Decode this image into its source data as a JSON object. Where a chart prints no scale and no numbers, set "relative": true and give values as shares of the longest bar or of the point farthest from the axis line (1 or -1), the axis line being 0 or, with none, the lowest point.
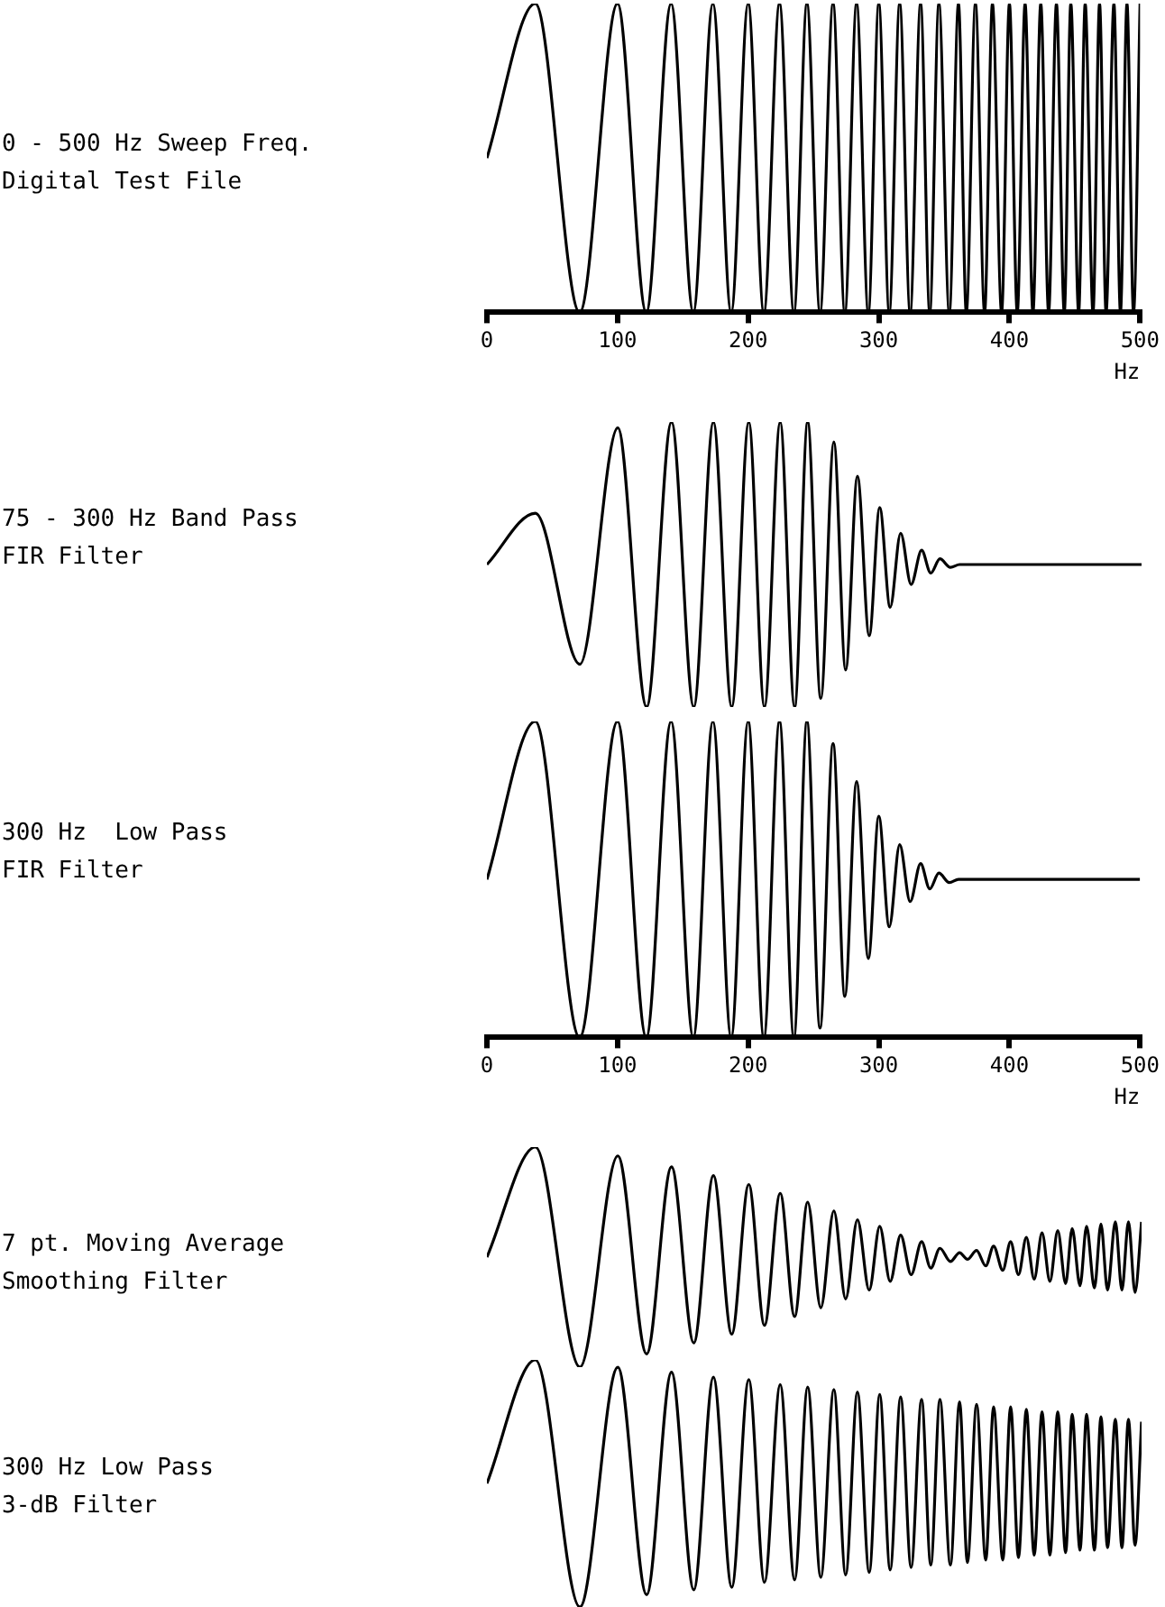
{
  "chart_data": [
    {
      "type": "line",
      "annotations": [
        "0 - 500 Hz Sweep Freq.\nDigital Test File"
      ],
      "xlabel": "Hz",
      "relative": true,
      "color": "#000000",
      "legend": false,
      "grid": false,
      "marker": "none",
      "xlim": [
        0,
        500
      ],
      "xticks": [
        0,
        100,
        200,
        300,
        400,
        500
      ],
      "x": [
        0,
        37,
        71,
        100,
        122,
        141,
        158,
        173,
        187,
        200,
        212,
        224,
        235,
        245,
        255,
        265,
        274,
        283,
        292,
        300,
        308,
        316,
        324,
        332,
        339,
        346,
        354,
        361,
        367,
        374,
        381,
        387,
        394,
        400,
        406,
        412,
        418,
        424,
        430,
        436,
        442,
        447,
        453,
        458,
        464,
        469,
        474,
        480,
        485,
        490,
        495,
        500
      ],
      "values": [
        0.5,
        1,
        0,
        1,
        0,
        1,
        0,
        1,
        0,
        1,
        0,
        1,
        0,
        1,
        0,
        1,
        0,
        1,
        0,
        1,
        0,
        1,
        0,
        1,
        0,
        1,
        0,
        1,
        0,
        1,
        0,
        1,
        0,
        1,
        0,
        1,
        0,
        1,
        0,
        1,
        0,
        1,
        0,
        1,
        0,
        1,
        0,
        1,
        0,
        1,
        0,
        1
      ]
    },
    {
      "type": "line",
      "annotations": [
        "75 - 300 Hz Band Pass\nFIR Filter"
      ],
      "relative": true,
      "color": "#000000",
      "legend": false,
      "grid": false,
      "marker": "none",
      "tick_labels": false,
      "xlim": [
        0,
        500
      ],
      "x": [
        0,
        37,
        71,
        100,
        122,
        141,
        158,
        173,
        187,
        200,
        212,
        224,
        235,
        245,
        255,
        265,
        274,
        283,
        292,
        300,
        308,
        316,
        324,
        332,
        339,
        346,
        354,
        361,
        367,
        374,
        381,
        387,
        394,
        400,
        406,
        412,
        418,
        424,
        430,
        436,
        442,
        447,
        453,
        458,
        464,
        469,
        474,
        480,
        485,
        490,
        495,
        500
      ],
      "values": [
        0.5,
        0.68,
        0.15,
        0.98,
        0,
        1,
        0,
        1,
        0,
        1,
        0,
        1,
        0,
        1,
        0.03,
        0.93,
        0.13,
        0.81,
        0.25,
        0.7,
        0.35,
        0.61,
        0.43,
        0.55,
        0.47,
        0.52,
        0.49,
        0.5,
        0.5,
        0.5,
        0.5,
        0.5,
        0.5,
        0.5,
        0.5,
        0.5,
        0.5,
        0.5,
        0.5,
        0.5,
        0.5,
        0.5,
        0.5,
        0.5,
        0.5,
        0.5,
        0.5,
        0.5,
        0.5,
        0.5,
        0.5,
        0.5
      ]
    },
    {
      "type": "line",
      "annotations": [
        "300 Hz  Low Pass\nFIR Filter"
      ],
      "xlabel": "Hz",
      "relative": true,
      "color": "#000000",
      "legend": false,
      "grid": false,
      "marker": "none",
      "xlim": [
        0,
        500
      ],
      "xticks": [
        0,
        100,
        200,
        300,
        400,
        500
      ],
      "x": [
        0,
        37,
        71,
        100,
        122,
        141,
        158,
        173,
        187,
        200,
        212,
        224,
        235,
        245,
        255,
        265,
        274,
        283,
        292,
        300,
        308,
        316,
        324,
        332,
        339,
        346,
        354,
        361,
        367,
        374,
        381,
        387,
        394,
        400,
        406,
        412,
        418,
        424,
        430,
        436,
        442,
        447,
        453,
        458,
        464,
        469,
        474,
        480,
        485,
        490,
        495,
        500
      ],
      "values": [
        0.5,
        1,
        0,
        1,
        0,
        1,
        0,
        1,
        0,
        1,
        0,
        1,
        0,
        1,
        0.03,
        0.93,
        0.13,
        0.81,
        0.25,
        0.7,
        0.35,
        0.61,
        0.43,
        0.55,
        0.47,
        0.52,
        0.49,
        0.5,
        0.5,
        0.5,
        0.5,
        0.5,
        0.5,
        0.5,
        0.5,
        0.5,
        0.5,
        0.5,
        0.5,
        0.5,
        0.5,
        0.5,
        0.5,
        0.5,
        0.5,
        0.5,
        0.5,
        0.5,
        0.5,
        0.5,
        0.5,
        0.5
      ]
    },
    {
      "type": "line",
      "annotations": [
        "7 pt. Moving Average\nSmoothing Filter"
      ],
      "relative": true,
      "color": "#000000",
      "legend": false,
      "grid": false,
      "marker": "none",
      "tick_labels": false,
      "xlim": [
        0,
        500
      ],
      "x": [
        0,
        37,
        71,
        100,
        122,
        141,
        158,
        173,
        187,
        200,
        212,
        224,
        235,
        245,
        255,
        265,
        274,
        283,
        292,
        300,
        308,
        316,
        324,
        332,
        339,
        346,
        354,
        361,
        367,
        374,
        381,
        387,
        394,
        400,
        406,
        412,
        418,
        424,
        430,
        436,
        442,
        447,
        453,
        458,
        464,
        469,
        474,
        480,
        485,
        490,
        495,
        500
      ],
      "values": [
        0.5,
        1,
        0,
        0.96,
        0.06,
        0.91,
        0.11,
        0.87,
        0.15,
        0.83,
        0.19,
        0.79,
        0.23,
        0.75,
        0.27,
        0.71,
        0.31,
        0.67,
        0.35,
        0.64,
        0.39,
        0.6,
        0.42,
        0.57,
        0.45,
        0.54,
        0.48,
        0.52,
        0.49,
        0.53,
        0.46,
        0.55,
        0.44,
        0.57,
        0.42,
        0.59,
        0.4,
        0.61,
        0.39,
        0.62,
        0.38,
        0.63,
        0.37,
        0.64,
        0.36,
        0.65,
        0.35,
        0.66,
        0.35,
        0.66,
        0.34,
        0.66
      ]
    },
    {
      "type": "line",
      "annotations": [
        "300 Hz Low Pass\n3-dB Filter"
      ],
      "relative": true,
      "color": "#000000",
      "legend": false,
      "grid": false,
      "marker": "none",
      "tick_labels": false,
      "xlim": [
        0,
        500
      ],
      "x": [
        0,
        37,
        71,
        100,
        122,
        141,
        158,
        173,
        187,
        200,
        212,
        224,
        235,
        245,
        255,
        265,
        274,
        283,
        292,
        300,
        308,
        316,
        324,
        332,
        339,
        346,
        354,
        361,
        367,
        374,
        381,
        387,
        394,
        400,
        406,
        412,
        418,
        424,
        430,
        436,
        442,
        447,
        453,
        458,
        464,
        469,
        474,
        480,
        485,
        490,
        495,
        500
      ],
      "values": [
        0.5,
        1,
        0,
        0.97,
        0.05,
        0.95,
        0.07,
        0.93,
        0.08,
        0.92,
        0.1,
        0.9,
        0.11,
        0.89,
        0.12,
        0.88,
        0.13,
        0.87,
        0.14,
        0.86,
        0.15,
        0.85,
        0.16,
        0.84,
        0.17,
        0.84,
        0.17,
        0.83,
        0.18,
        0.82,
        0.19,
        0.81,
        0.19,
        0.81,
        0.2,
        0.8,
        0.21,
        0.79,
        0.21,
        0.79,
        0.22,
        0.78,
        0.23,
        0.78,
        0.23,
        0.77,
        0.24,
        0.76,
        0.24,
        0.76,
        0.25,
        0.75
      ]
    }
  ]
}
